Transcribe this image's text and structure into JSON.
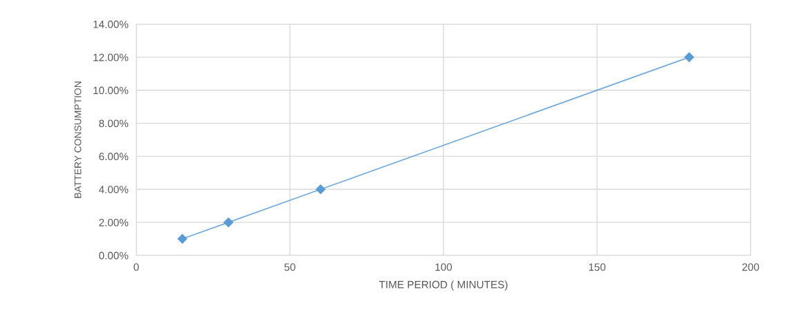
{
  "chart_data": {
    "type": "line",
    "xlabel": "TIME PERIOD ( MINUTES)",
    "ylabel": "BATTERY CONSUMPTION",
    "x": [
      15,
      30,
      60,
      180
    ],
    "series": [
      {
        "color": "#5b9bd5",
        "values": [
          1,
          2,
          4,
          12
        ]
      }
    ],
    "xlim": [
      0,
      200
    ],
    "xticks": [
      0,
      50,
      100,
      150,
      200
    ],
    "ylim": [
      0,
      14
    ],
    "yticks": [
      {
        "value": 0,
        "label": "0.00%"
      },
      {
        "value": 2,
        "label": "2.00%"
      },
      {
        "value": 4,
        "label": "4.00%"
      },
      {
        "value": 6,
        "label": "6.00%"
      },
      {
        "value": 8,
        "label": "8.00%"
      },
      {
        "value": 10,
        "label": "10.00%"
      },
      {
        "value": 12,
        "label": "12.00%"
      },
      {
        "value": 14,
        "label": "14.00%"
      }
    ],
    "grid": true,
    "marker": "diamond",
    "line_style": "solid"
  }
}
